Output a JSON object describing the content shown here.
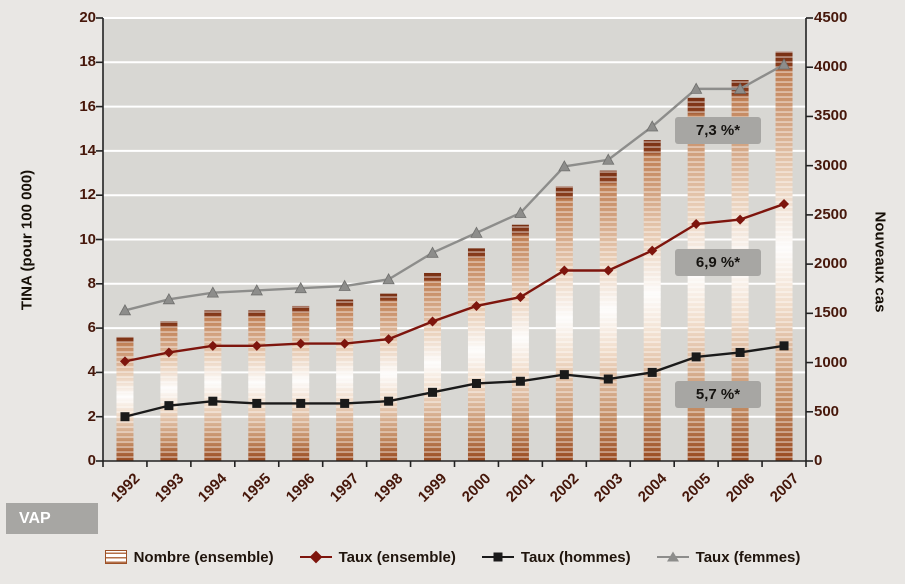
{
  "chart_data": {
    "type": "bar+line",
    "x_categories": [
      "1992",
      "1993",
      "1994",
      "1995",
      "1996",
      "1997",
      "1998",
      "1999",
      "2000",
      "2001",
      "2002",
      "2003",
      "2004",
      "2005",
      "2006",
      "2007"
    ],
    "bar_series": {
      "name": "Nombre (ensemble)",
      "axis": "right",
      "color": "#9c5026",
      "values": [
        1260,
        1420,
        1530,
        1530,
        1575,
        1640,
        1700,
        1910,
        2160,
        2400,
        2790,
        2950,
        3260,
        3690,
        3870,
        4160
      ]
    },
    "line_series": [
      {
        "name": "Taux (ensemble)",
        "axis": "left",
        "marker": "diamond",
        "color": "#7e150d",
        "values": [
          4.5,
          4.9,
          5.2,
          5.2,
          5.3,
          5.3,
          5.5,
          6.3,
          7.0,
          7.4,
          8.6,
          8.6,
          9.5,
          10.7,
          10.9,
          11.6
        ]
      },
      {
        "name": "Taux (hommes)",
        "axis": "left",
        "marker": "square",
        "color": "#1a1a1a",
        "values": [
          2.0,
          2.5,
          2.7,
          2.6,
          2.6,
          2.6,
          2.7,
          3.1,
          3.5,
          3.6,
          3.9,
          3.7,
          4.0,
          4.7,
          4.9,
          5.2
        ]
      },
      {
        "name": "Taux (femmes)",
        "axis": "left",
        "marker": "triangle",
        "color": "#8d8d8b",
        "values": [
          6.8,
          7.3,
          7.6,
          7.7,
          7.8,
          7.9,
          8.2,
          9.4,
          10.3,
          11.2,
          13.3,
          13.6,
          15.1,
          16.8,
          16.8,
          17.9
        ]
      }
    ],
    "left_axis": {
      "title": "TINA (pour 100 000)",
      "min": 0,
      "max": 20,
      "step": 2
    },
    "right_axis": {
      "title": "Nouveaux cas",
      "min": 0,
      "max": 4500,
      "step": 500
    },
    "annotations": [
      {
        "label": "7,3 %*"
      },
      {
        "label": "6,9 %*"
      },
      {
        "label": "5,7 %*"
      }
    ],
    "grid": "horizontal-white",
    "legend_position": "bottom"
  },
  "legend": {
    "items": [
      {
        "label": "Nombre (ensemble)"
      },
      {
        "label": "Taux (ensemble)"
      },
      {
        "label": "Taux (hommes)"
      },
      {
        "label": "Taux (femmes)"
      }
    ]
  },
  "footer": {
    "vap_label": "VAP"
  },
  "colors": {
    "page_background": "#e9e7e4",
    "plot_background": "#d8d7d3",
    "gridline": "#ffffff",
    "annotation_box": "#a7a6a3",
    "tick_label": "#46170a",
    "bar_dark": "#9c5026",
    "line_ensemble": "#7e150d",
    "line_hommes": "#1a1a1a",
    "line_femmes": "#8d8d8b"
  }
}
